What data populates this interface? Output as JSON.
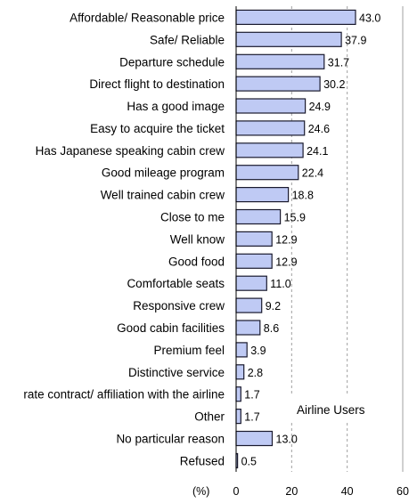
{
  "chart_data": {
    "type": "bar",
    "orientation": "horizontal",
    "categories": [
      "Affordable/ Reasonable price",
      "Safe/ Reliable",
      "Departure schedule",
      "Direct flight to destination",
      "Has a good image",
      "Easy to acquire the ticket",
      "Has Japanese speaking cabin crew",
      "Good mileage program",
      "Well trained cabin crew",
      "Close to me",
      "Well know",
      "Good food",
      "Comfortable seats",
      "Responsive crew",
      "Good cabin facilities",
      "Premium feel",
      "Distinctive service",
      "rate contract/ affiliation with the airline",
      "Other",
      "No particular reason",
      "Refused"
    ],
    "values": [
      43.0,
      37.9,
      31.7,
      30.2,
      24.9,
      24.6,
      24.1,
      22.4,
      18.8,
      15.9,
      12.9,
      12.9,
      11.0,
      9.2,
      8.6,
      3.9,
      2.8,
      1.7,
      1.7,
      13.0,
      0.5
    ],
    "value_labels": [
      "43.0",
      "37.9",
      "31.7",
      "30.2",
      "24.9",
      "24.6",
      "24.1",
      "22.4",
      "18.8",
      "15.9",
      "12.9",
      "12.9",
      "11.0",
      "9.2",
      "8.6",
      "3.9",
      "2.8",
      "1.7",
      "1.7",
      "13.0",
      "0.5"
    ],
    "xlim": [
      0,
      60
    ],
    "xticks": [
      "0",
      "20",
      "40",
      "60"
    ],
    "xunit_label": "(%)",
    "annotation": "Airline Users",
    "grid": "vertical dashed",
    "colors": {
      "bar_fill": "#bfcaf4",
      "bar_stroke": "#1a1a2e",
      "grid": "#a0a0a0"
    }
  }
}
